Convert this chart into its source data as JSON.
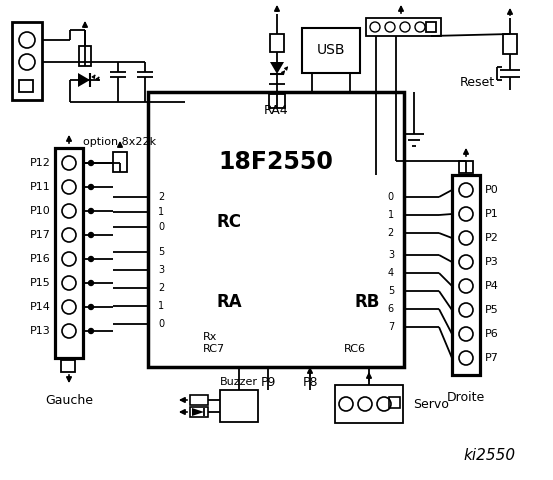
{
  "bg_color": "#ffffff",
  "title": "ki2550",
  "chip_label": "18F2550",
  "ra4_label": "RA4",
  "rc_label": "RC",
  "ra_label": "RA",
  "rb_label": "RB",
  "rx_label": "Rx",
  "rc7_label": "RC7",
  "rc6_label": "RC6",
  "usb_label": "USB",
  "reset_label": "Reset",
  "buzzer_label": "Buzzer",
  "gauche_label": "Gauche",
  "droite_label": "Droite",
  "servo_label": "Servo",
  "p9_label": "P9",
  "p8_label": "P8",
  "option_label": "option 8x22k",
  "left_pins": [
    "P12",
    "P11",
    "P10",
    "P17",
    "P16",
    "P15",
    "P14",
    "P13"
  ],
  "right_pins": [
    "P0",
    "P1",
    "P2",
    "P3",
    "P4",
    "P5",
    "P6",
    "P7"
  ],
  "rc_pins": [
    "2",
    "1",
    "0"
  ],
  "ra_pins": [
    "5",
    "3",
    "2",
    "1",
    "0"
  ],
  "rb_pins": [
    "0",
    "1",
    "2",
    "3",
    "4",
    "5",
    "6",
    "7"
  ]
}
